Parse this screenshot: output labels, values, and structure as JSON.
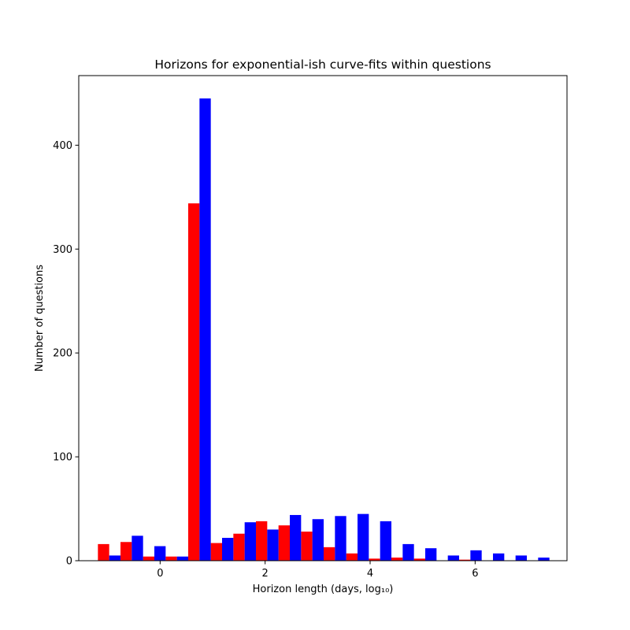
{
  "chart_data": {
    "type": "bar",
    "title": "Horizons for exponential-ish curve-fits within questions",
    "xlabel": "Horizon length (days, log₁₀)",
    "ylabel": "Number of questions",
    "xlim": [
      -1.55,
      7.75
    ],
    "ylim": [
      0,
      467
    ],
    "xticks": [
      0,
      2,
      4,
      6
    ],
    "yticks": [
      0,
      100,
      200,
      300,
      400
    ],
    "grid": false,
    "legend": "none",
    "bin_width": 0.43,
    "bin_centers": [
      -0.97,
      -0.54,
      -0.11,
      0.32,
      0.75,
      1.18,
      1.61,
      2.04,
      2.47,
      2.9,
      3.33,
      3.76,
      4.19,
      4.62,
      5.05,
      5.48,
      5.91,
      6.34,
      6.77,
      7.2
    ],
    "series": [
      {
        "color": "#ff0000",
        "values": [
          16,
          18,
          4,
          4,
          344,
          17,
          26,
          38,
          34,
          28,
          13,
          7,
          2,
          3,
          2,
          0,
          1,
          0,
          0,
          0
        ]
      },
      {
        "color": "#0000ff",
        "values": [
          5,
          24,
          14,
          4,
          445,
          22,
          37,
          30,
          44,
          40,
          43,
          45,
          38,
          16,
          12,
          5,
          10,
          7,
          5,
          3
        ]
      }
    ]
  }
}
